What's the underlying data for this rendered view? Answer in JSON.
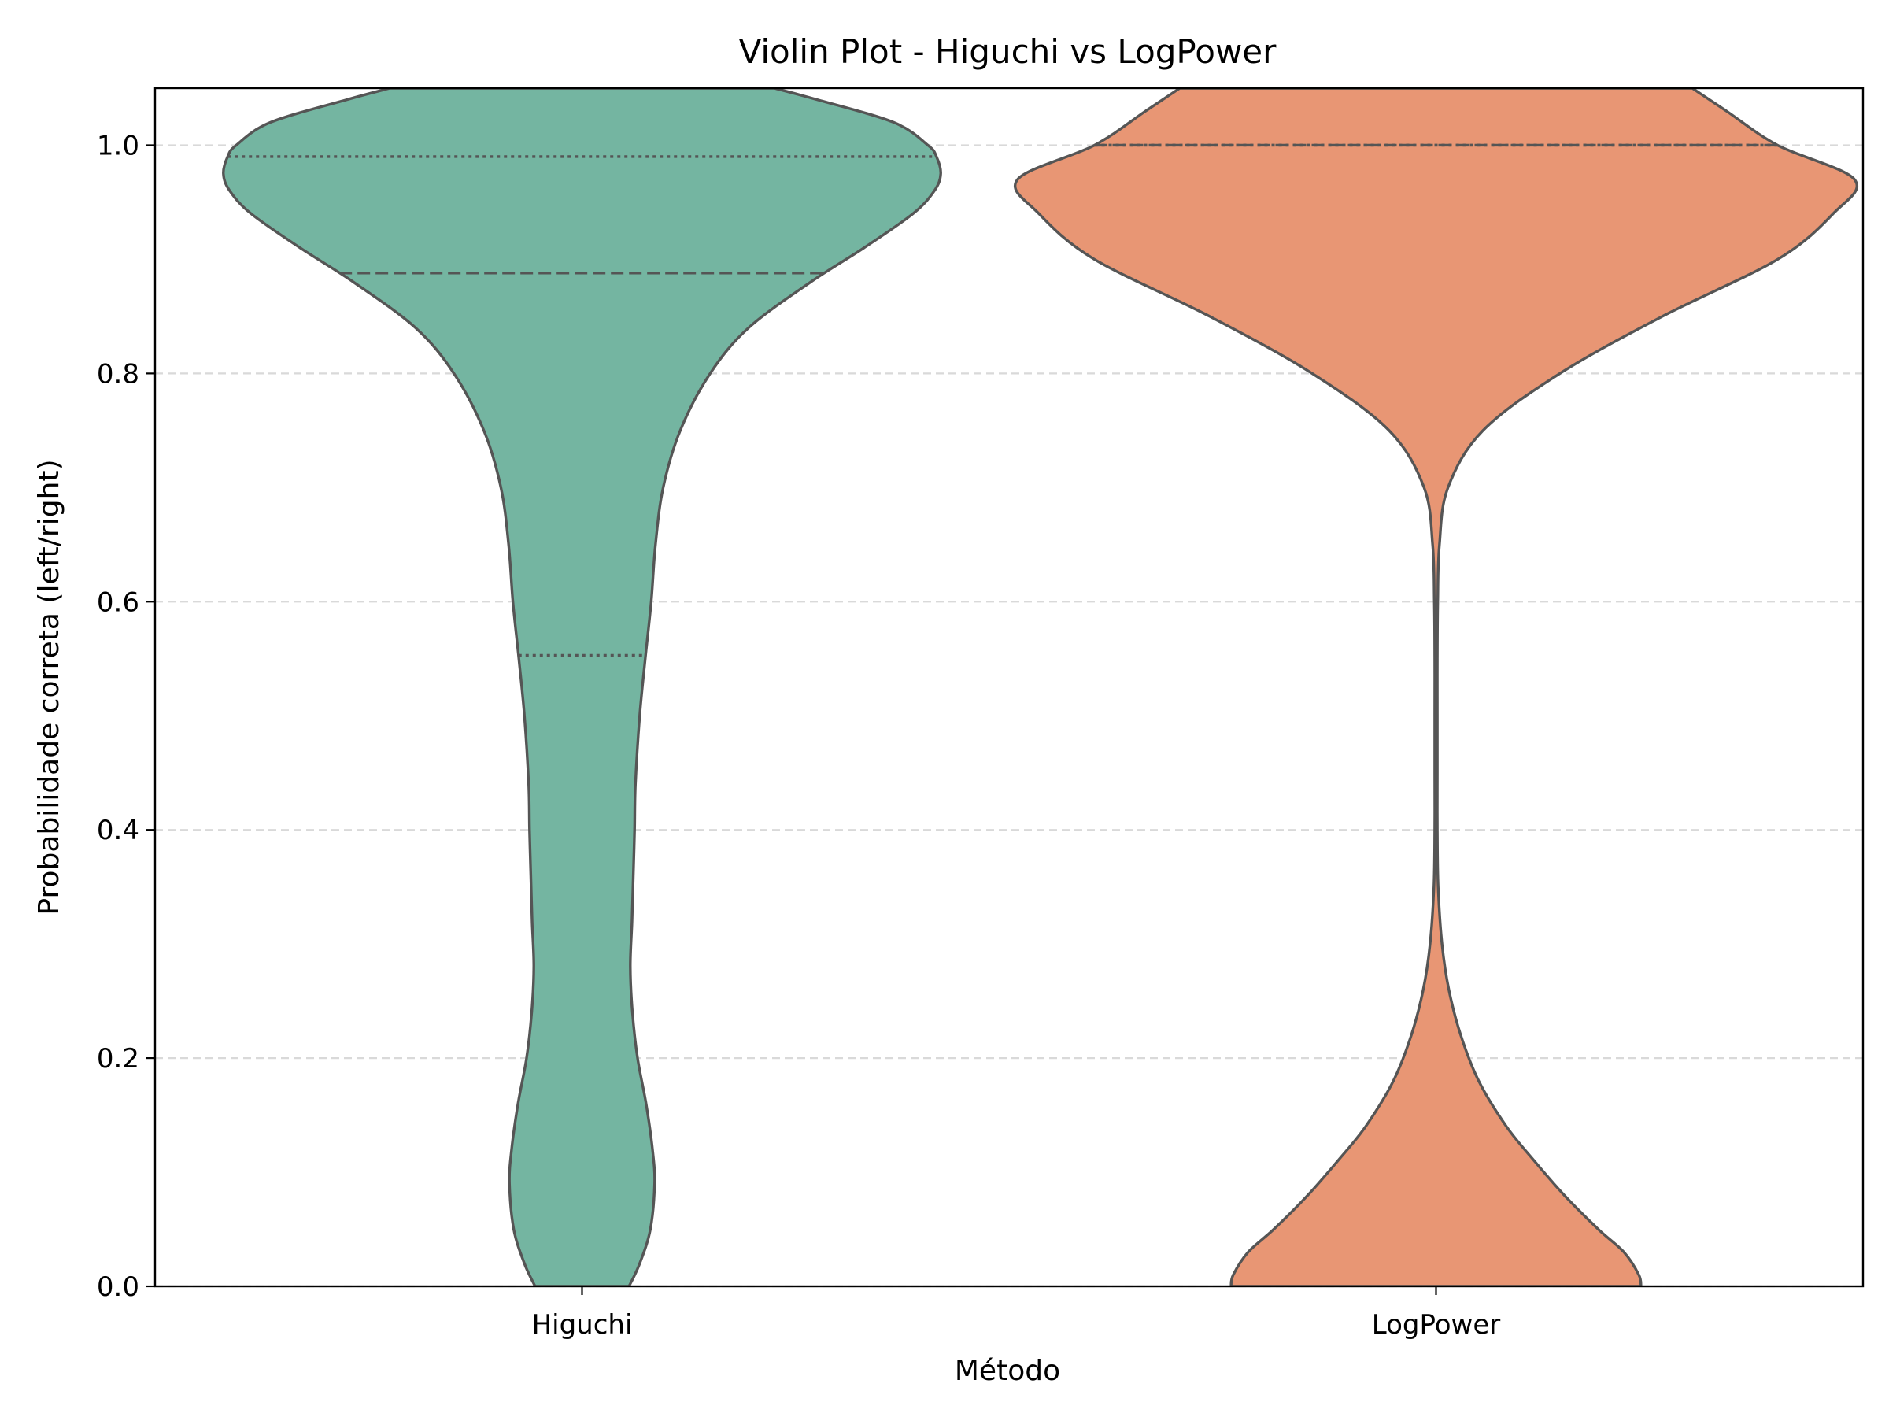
{
  "chart_data": {
    "type": "violin",
    "title": "Violin Plot - Higuchi vs LogPower",
    "xlabel": "Método",
    "ylabel": "Probabilidade correta (left/right)",
    "ylim": [
      0,
      1.05
    ],
    "yticks": [
      0.0,
      0.2,
      0.4,
      0.6,
      0.8,
      1.0
    ],
    "ytick_labels": [
      "0.0",
      "0.2",
      "0.4",
      "0.6",
      "0.8",
      "1.0"
    ],
    "grid": {
      "axis": "y",
      "style": "dashed",
      "on": true
    },
    "inner": "quartile",
    "categories": [
      "Higuchi",
      "LogPower"
    ],
    "violins": [
      {
        "name": "Higuchi",
        "color": "#74b5a1",
        "quartiles": {
          "q1": 0.553,
          "median": 0.888,
          "q3": 0.99
        },
        "profile": [
          [
            0.0,
            0.11
          ],
          [
            0.02,
            0.135
          ],
          [
            0.05,
            0.16
          ],
          [
            0.09,
            0.17
          ],
          [
            0.12,
            0.165
          ],
          [
            0.16,
            0.15
          ],
          [
            0.2,
            0.13
          ],
          [
            0.24,
            0.118
          ],
          [
            0.28,
            0.113
          ],
          [
            0.32,
            0.117
          ],
          [
            0.36,
            0.12
          ],
          [
            0.4,
            0.123
          ],
          [
            0.44,
            0.125
          ],
          [
            0.5,
            0.135
          ],
          [
            0.55,
            0.148
          ],
          [
            0.6,
            0.162
          ],
          [
            0.65,
            0.172
          ],
          [
            0.7,
            0.19
          ],
          [
            0.75,
            0.23
          ],
          [
            0.8,
            0.3
          ],
          [
            0.84,
            0.39
          ],
          [
            0.88,
            0.535
          ],
          [
            0.91,
            0.66
          ],
          [
            0.94,
            0.775
          ],
          [
            0.96,
            0.825
          ],
          [
            0.975,
            0.84
          ],
          [
            0.99,
            0.83
          ],
          [
            1.0,
            0.81
          ],
          [
            1.02,
            0.73
          ],
          [
            1.04,
            0.55
          ],
          [
            1.05,
            0.45
          ]
        ]
      },
      {
        "name": "LogPower",
        "color": "#e89674",
        "quartiles": {
          "q1": 1.0,
          "median": 1.0,
          "q3": 1.0
        },
        "profile": [
          [
            0.0,
            0.48
          ],
          [
            0.01,
            0.475
          ],
          [
            0.03,
            0.44
          ],
          [
            0.05,
            0.38
          ],
          [
            0.08,
            0.3
          ],
          [
            0.11,
            0.23
          ],
          [
            0.14,
            0.165
          ],
          [
            0.18,
            0.1
          ],
          [
            0.22,
            0.058
          ],
          [
            0.26,
            0.03
          ],
          [
            0.3,
            0.014
          ],
          [
            0.35,
            0.005
          ],
          [
            0.4,
            0.003
          ],
          [
            0.45,
            0.003
          ],
          [
            0.5,
            0.003
          ],
          [
            0.55,
            0.003
          ],
          [
            0.6,
            0.004
          ],
          [
            0.65,
            0.008
          ],
          [
            0.7,
            0.028
          ],
          [
            0.75,
            0.11
          ],
          [
            0.8,
            0.29
          ],
          [
            0.85,
            0.53
          ],
          [
            0.9,
            0.8
          ],
          [
            0.94,
            0.93
          ],
          [
            0.97,
            0.98
          ],
          [
            1.0,
            0.8
          ],
          [
            1.03,
            0.68
          ],
          [
            1.05,
            0.6
          ]
        ]
      }
    ]
  }
}
